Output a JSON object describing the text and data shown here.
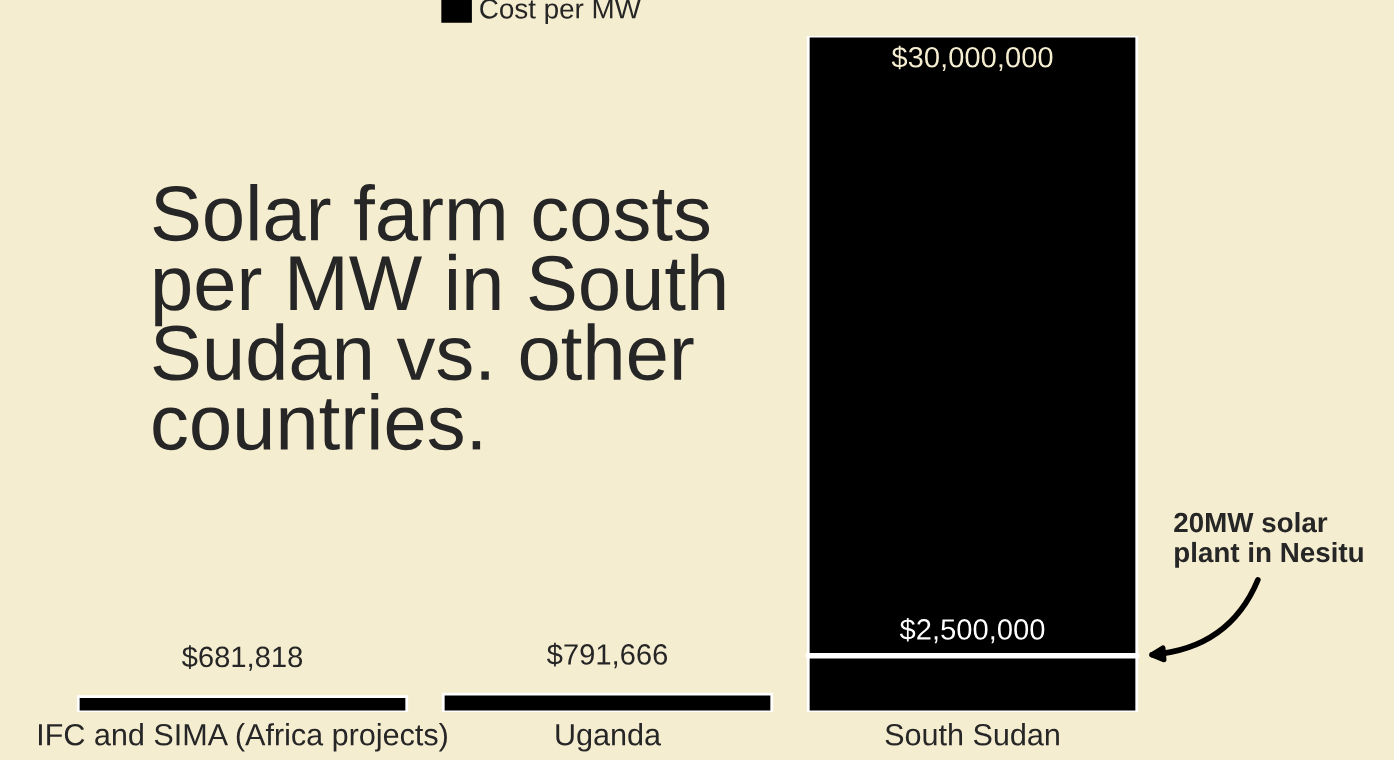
{
  "chart_data": {
    "type": "bar",
    "title": "Solar farm costs per MW in South Sudan vs. other countries.",
    "categories": [
      "IFC and SIMA (Africa projects)",
      "Uganda",
      "South Sudan"
    ],
    "series": [
      {
        "name": "Cost per MW",
        "color": "#000000",
        "values": [
          681818,
          791666,
          30000000
        ],
        "value_labels": [
          "$681,818",
          "$791,666",
          "$30,000,000"
        ]
      }
    ],
    "ylim": [
      0,
      30000000
    ],
    "tick_labels": "x",
    "grid": false,
    "legend": "top",
    "ref_lines": [
      {
        "axis": "y",
        "value": 2500000,
        "label": "$2,500,000",
        "color": "#ffffff"
      }
    ],
    "annotations": [
      "20MW solar plant in Nesitu"
    ]
  }
}
